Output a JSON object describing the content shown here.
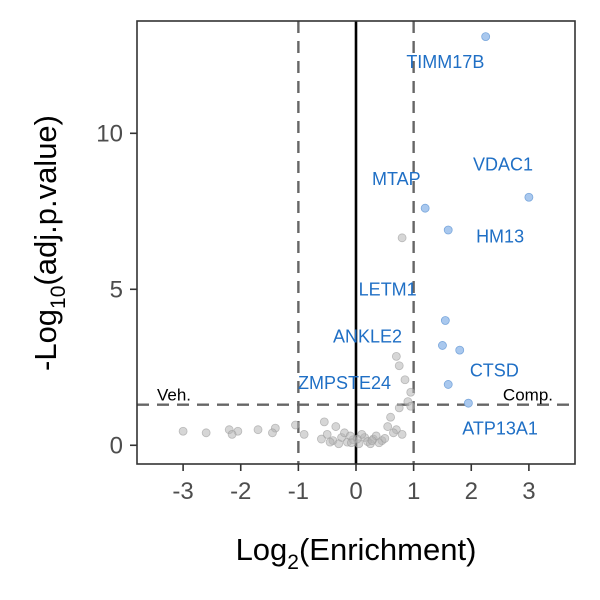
{
  "chart_data": {
    "type": "scatter",
    "title": "",
    "xlabel": {
      "base": "Log",
      "sub": "2",
      "rest": "(Enrichment)"
    },
    "ylabel": {
      "prefix": "-Log",
      "sub": "10",
      "rest": "(adj.p.value)"
    },
    "xlim": [
      -3.8,
      3.8
    ],
    "ylim": [
      -0.6,
      13.6
    ],
    "x_ticks": [
      -3,
      -2,
      -1,
      0,
      1,
      2,
      3
    ],
    "y_ticks": [
      0,
      5,
      10
    ],
    "grid": false,
    "thresholds": {
      "x": [
        -1,
        1
      ],
      "y": 1.3
    },
    "corner_labels": {
      "left": "Veh.",
      "right": "Comp."
    },
    "colors": {
      "significant": "#1f6fc5",
      "significant_fill": "#a9c8ee",
      "background": "#b5b5b5",
      "threshold_line": "#666666"
    },
    "significant_points": [
      {
        "x": 2.25,
        "y": 13.1
      },
      {
        "x": 3.0,
        "y": 7.95
      },
      {
        "x": 1.2,
        "y": 7.6
      },
      {
        "x": 1.6,
        "y": 6.9
      },
      {
        "x": 1.55,
        "y": 4.0
      },
      {
        "x": 1.5,
        "y": 3.2
      },
      {
        "x": 1.8,
        "y": 3.05
      },
      {
        "x": 1.6,
        "y": 1.95
      },
      {
        "x": 1.95,
        "y": 1.35
      }
    ],
    "background_points": [
      {
        "x": 0.8,
        "y": 6.65
      },
      {
        "x": 0.7,
        "y": 2.85
      },
      {
        "x": 0.75,
        "y": 2.55
      },
      {
        "x": 0.85,
        "y": 2.1
      },
      {
        "x": 0.95,
        "y": 1.7
      },
      {
        "x": 0.9,
        "y": 1.4
      },
      {
        "x": 0.75,
        "y": 1.2
      },
      {
        "x": 0.95,
        "y": 1.25
      },
      {
        "x": 0.7,
        "y": 0.5
      },
      {
        "x": 0.65,
        "y": 0.4
      },
      {
        "x": 0.8,
        "y": 0.35
      },
      {
        "x": 0.6,
        "y": 0.9
      },
      {
        "x": 0.55,
        "y": 0.6
      },
      {
        "x": -1.05,
        "y": 0.65
      },
      {
        "x": -0.9,
        "y": 0.35
      },
      {
        "x": -0.55,
        "y": 0.75
      },
      {
        "x": -0.35,
        "y": 0.6
      },
      {
        "x": -0.5,
        "y": 0.35
      },
      {
        "x": -0.6,
        "y": 0.2
      },
      {
        "x": -0.4,
        "y": 0.15
      },
      {
        "x": -1.4,
        "y": 0.55
      },
      {
        "x": -1.45,
        "y": 0.4
      },
      {
        "x": -1.7,
        "y": 0.5
      },
      {
        "x": -2.05,
        "y": 0.45
      },
      {
        "x": -2.2,
        "y": 0.5
      },
      {
        "x": -2.15,
        "y": 0.35
      },
      {
        "x": -2.6,
        "y": 0.4
      },
      {
        "x": -3.0,
        "y": 0.45
      },
      {
        "x": 0.3,
        "y": 0.2
      },
      {
        "x": 0.15,
        "y": 0.25
      },
      {
        "x": 0.45,
        "y": 0.15
      },
      {
        "x": -0.15,
        "y": 0.1
      },
      {
        "x": -0.25,
        "y": 0.25
      },
      {
        "x": 0.05,
        "y": 0.05
      },
      {
        "x": 0.2,
        "y": 0.12
      },
      {
        "x": -0.05,
        "y": 0.18
      },
      {
        "x": 0.35,
        "y": 0.3
      },
      {
        "x": -0.3,
        "y": 0.05
      },
      {
        "x": 0.1,
        "y": 0.35
      },
      {
        "x": 0.25,
        "y": 0.05
      },
      {
        "x": -0.2,
        "y": 0.4
      },
      {
        "x": 0.4,
        "y": 0.08
      },
      {
        "x": -0.1,
        "y": 0.3
      },
      {
        "x": 0.5,
        "y": 0.22
      },
      {
        "x": -0.45,
        "y": 0.1
      },
      {
        "x": 0.02,
        "y": 0.2
      },
      {
        "x": 0.28,
        "y": 0.15
      },
      {
        "x": -0.08,
        "y": 0.08
      }
    ],
    "annotations": [
      {
        "text": "TIMM17B",
        "x": 1.55,
        "y": 12.1
      },
      {
        "text": "VDAC1",
        "x": 2.55,
        "y": 8.8
      },
      {
        "text": "MTAP",
        "x": 0.7,
        "y": 8.35
      },
      {
        "text": "HM13",
        "x": 2.5,
        "y": 6.5
      },
      {
        "text": "LETM1",
        "x": 0.55,
        "y": 4.8
      },
      {
        "text": "ANKLE2",
        "x": 0.2,
        "y": 3.3
      },
      {
        "text": "ZMPSTE24",
        "x": -0.2,
        "y": 1.8
      },
      {
        "text": "CTSD",
        "x": 2.4,
        "y": 2.2
      },
      {
        "text": "ATP13A1",
        "x": 2.5,
        "y": 0.35
      }
    ]
  }
}
